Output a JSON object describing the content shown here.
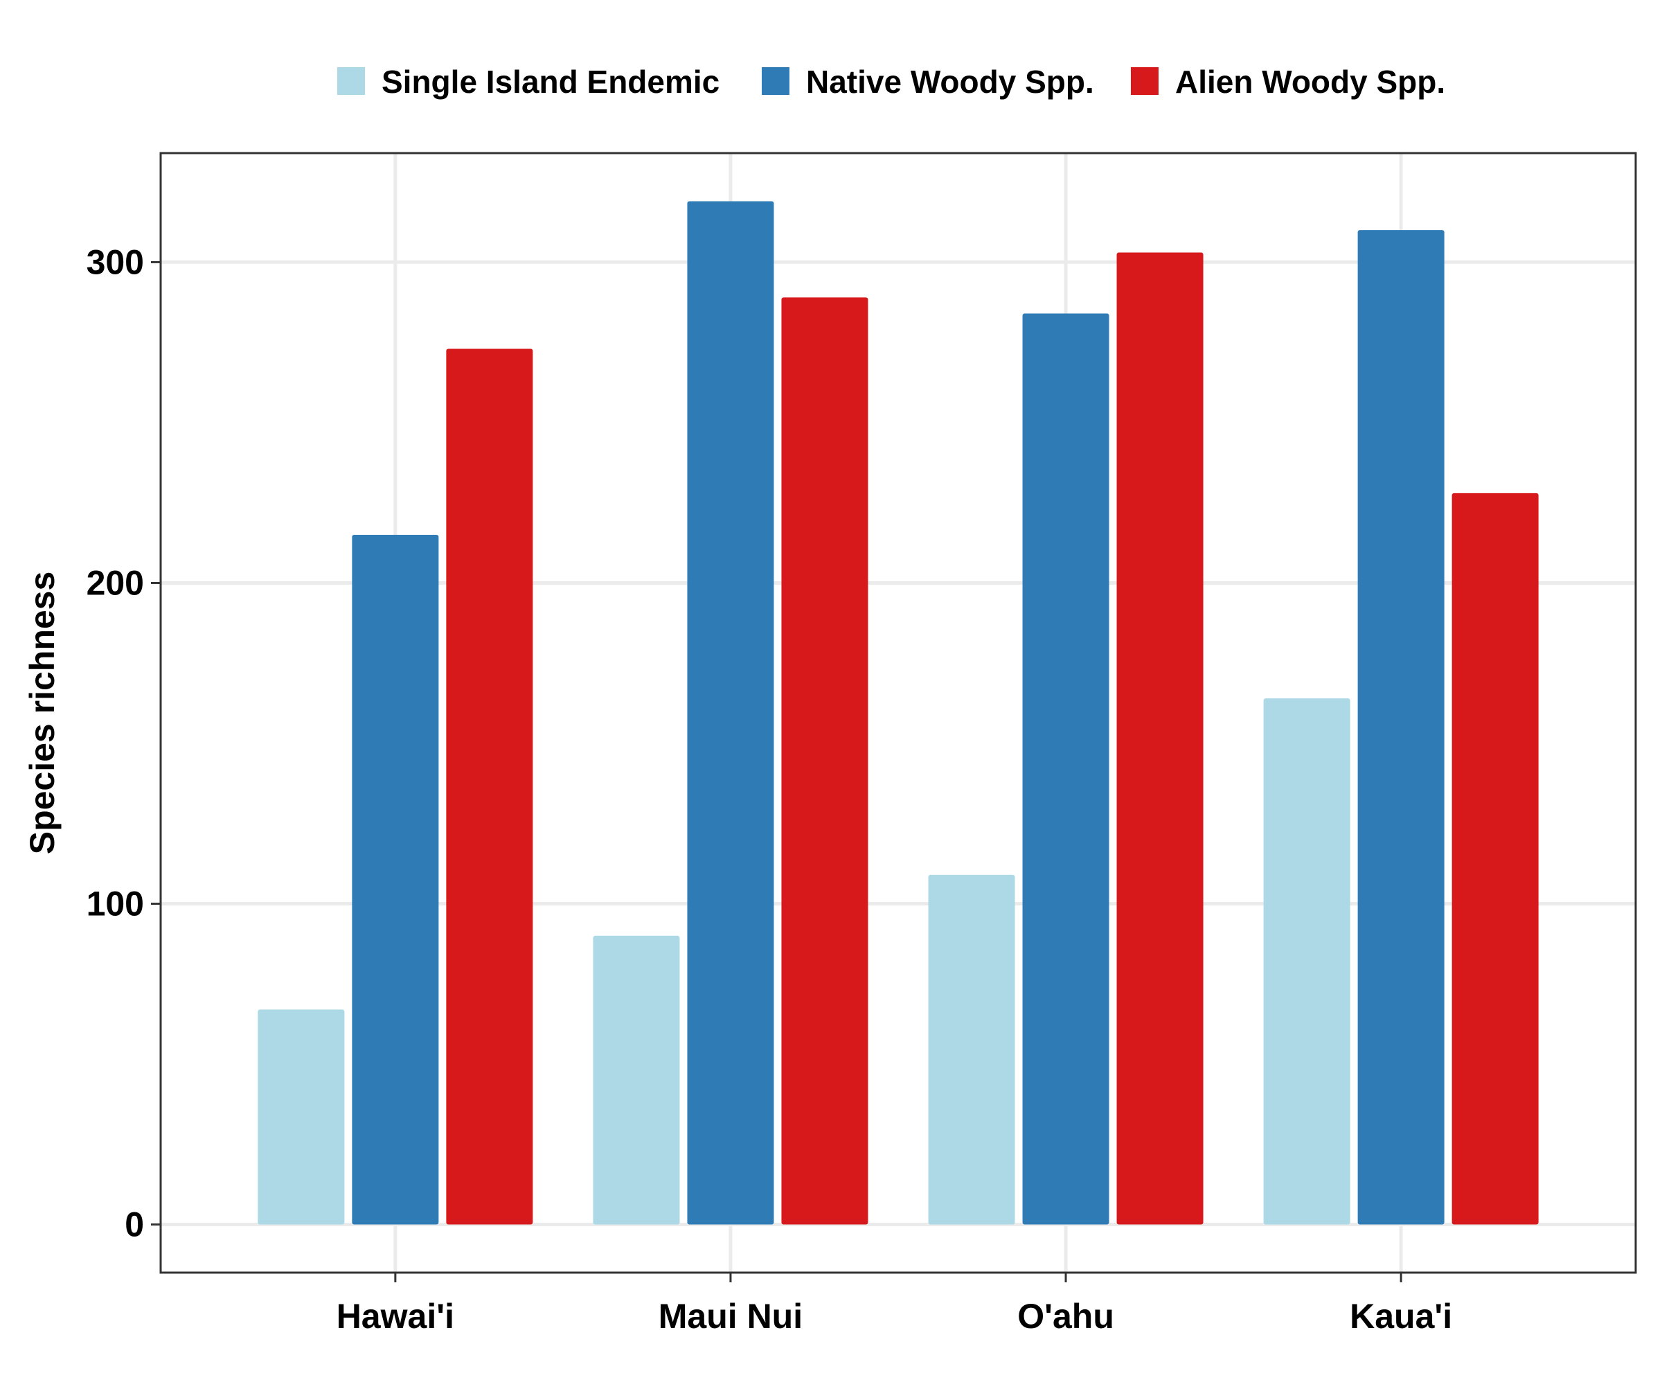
{
  "chart_data": {
    "type": "bar",
    "title": "",
    "xlabel": "",
    "ylabel": "Species richness",
    "categories": [
      "Hawai'i",
      "Maui Nui",
      "O'ahu",
      "Kaua'i"
    ],
    "series": [
      {
        "name": "Single Island Endemic",
        "color": "#add8e6",
        "values": [
          67,
          90,
          109,
          164
        ]
      },
      {
        "name": "Native Woody Spp.",
        "color": "#2e7bb6",
        "values": [
          215,
          319,
          284,
          310
        ]
      },
      {
        "name": "Alien Woody Spp.",
        "color": "#d7191c",
        "values": [
          273,
          289,
          303,
          228
        ]
      }
    ],
    "yticks": [
      0,
      100,
      200,
      300
    ],
    "ylim": [
      -15,
      334
    ],
    "grid": true,
    "legend_position": "top"
  }
}
